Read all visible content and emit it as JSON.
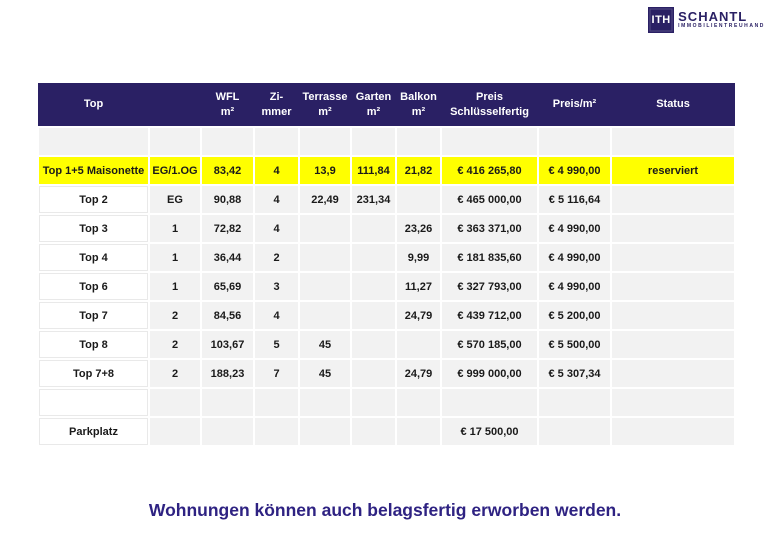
{
  "logo": {
    "box": "ITH",
    "name": "SCHANTL",
    "subtitle": "IMMOBILIENTREUHAND"
  },
  "colors": {
    "header_bg": "#2A2064",
    "highlight_row": "#FFFF00",
    "cell_bg": "#F2F2F2",
    "footer_text": "#2E2282"
  },
  "table": {
    "headers": [
      {
        "line1": "Top",
        "line2": ""
      },
      {
        "line1": "",
        "line2": ""
      },
      {
        "line1": "WFL",
        "line2": "m²"
      },
      {
        "line1": "Zi-",
        "line2": "mmer"
      },
      {
        "line1": "Terrasse",
        "line2": "m²"
      },
      {
        "line1": "Garten",
        "line2": "m²"
      },
      {
        "line1": "Balkon",
        "line2": "m²"
      },
      {
        "line1": "Preis",
        "line2": "Schlüsselfertig"
      },
      {
        "line1": "Preis/m²",
        "line2": ""
      },
      {
        "line1": "Status",
        "line2": ""
      }
    ],
    "rows": [
      {
        "type": "spacer",
        "cells": [
          "",
          "",
          "",
          "",
          "",
          "",
          "",
          "",
          "",
          ""
        ]
      },
      {
        "type": "highlight",
        "cells": [
          "Top 1+5 Maisonette",
          "EG/1.OG",
          "83,42",
          "4",
          "13,9",
          "111,84",
          "21,82",
          "€ 416 265,80",
          "€ 4 990,00",
          "reserviert"
        ]
      },
      {
        "type": "data",
        "cells": [
          "Top 2",
          "EG",
          "90,88",
          "4",
          "22,49",
          "231,34",
          "",
          "€ 465 000,00",
          "€ 5 116,64",
          ""
        ]
      },
      {
        "type": "data",
        "cells": [
          "Top 3",
          "1",
          "72,82",
          "4",
          "",
          "",
          "23,26",
          "€ 363 371,00",
          "€ 4 990,00",
          ""
        ]
      },
      {
        "type": "data",
        "cells": [
          "Top 4",
          "1",
          "36,44",
          "2",
          "",
          "",
          "9,99",
          "€ 181 835,60",
          "€ 4 990,00",
          ""
        ]
      },
      {
        "type": "data",
        "cells": [
          "Top 6",
          "1",
          "65,69",
          "3",
          "",
          "",
          "11,27",
          "€ 327 793,00",
          "€ 4 990,00",
          ""
        ]
      },
      {
        "type": "data",
        "cells": [
          "Top 7",
          "2",
          "84,56",
          "4",
          "",
          "",
          "24,79",
          "€ 439 712,00",
          "€ 5 200,00",
          ""
        ]
      },
      {
        "type": "data",
        "cells": [
          "Top 8",
          "2",
          "103,67",
          "5",
          "45",
          "",
          "",
          "€ 570 185,00",
          "€ 5 500,00",
          ""
        ]
      },
      {
        "type": "data",
        "cells": [
          "Top 7+8",
          "2",
          "188,23",
          "7",
          "45",
          "",
          "24,79",
          "€ 999 000,00",
          "€ 5 307,34",
          ""
        ]
      },
      {
        "type": "data",
        "cells": [
          "",
          "",
          "",
          "",
          "",
          "",
          "",
          "",
          "",
          ""
        ]
      },
      {
        "type": "data",
        "cells": [
          "Parkplatz",
          "",
          "",
          "",
          "",
          "",
          "",
          "€ 17 500,00",
          "",
          ""
        ]
      }
    ]
  },
  "footer": {
    "note": "Wohnungen können auch belagsfertig erworben werden."
  }
}
